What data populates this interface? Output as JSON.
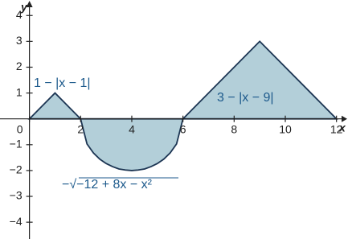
{
  "chart_data": {
    "type": "area",
    "x_label": "x",
    "y_label": "y",
    "xlim": [
      -1.15,
      12.45
    ],
    "ylim": [
      -4.65,
      4.6
    ],
    "xticks": [
      0,
      2,
      4,
      6,
      8,
      10,
      12
    ],
    "yticks": [
      {
        "value": -4,
        "label": "−4"
      },
      {
        "value": -3,
        "label": "−3"
      },
      {
        "value": -2,
        "label": "−2"
      },
      {
        "value": -1,
        "label": "−1"
      },
      1,
      2,
      3,
      4
    ],
    "fill_color": "#b3cfd9",
    "line_color": "#1c3553",
    "label_color": "#1d5a8c",
    "series": [
      {
        "name": "1 − |x − 1|",
        "x": [
          0,
          1,
          2
        ],
        "values": [
          0,
          1,
          0
        ]
      },
      {
        "name": "−√−12 + 8x − x²",
        "x": [
          2,
          2.25,
          2.5,
          2.75,
          3,
          3.25,
          3.5,
          3.75,
          4,
          4.25,
          4.5,
          4.75,
          5,
          5.25,
          5.5,
          5.75,
          6
        ],
        "values": [
          0,
          -0.97,
          -1.32,
          -1.56,
          -1.73,
          -1.85,
          -1.94,
          -1.98,
          -2,
          -1.98,
          -1.94,
          -1.85,
          -1.73,
          -1.56,
          -1.32,
          -0.97,
          0
        ]
      },
      {
        "name": "3 − |x − 9|",
        "x": [
          6,
          9,
          12
        ],
        "values": [
          0,
          3,
          0
        ]
      }
    ]
  }
}
